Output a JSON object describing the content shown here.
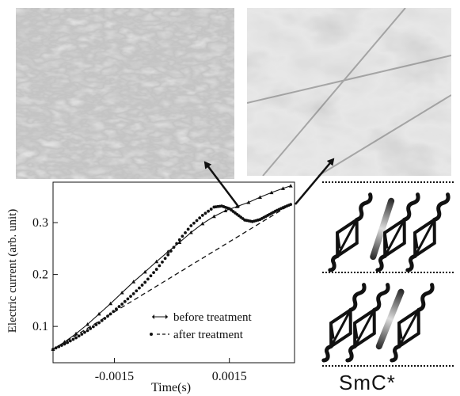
{
  "figure": {
    "phase_label": "SmC*",
    "colors": {
      "ink": "#111111",
      "micrograph_base": "#a9a9a9",
      "molecule_gradient": "#9a9a9a"
    },
    "icons": [
      "arrow-icon",
      "molecule-icon"
    ]
  },
  "chart_data": {
    "type": "line",
    "xlabel": "Time(s)",
    "ylabel": "Electric current (arb. unit)",
    "x_ticks": [
      -0.0015,
      0.0015
    ],
    "x_tick_labels": [
      "-0.0015",
      "0.0015"
    ],
    "y_ticks": [
      0.1,
      0.2,
      0.3
    ],
    "y_tick_labels": [
      "0.1",
      "0.2",
      "0.3"
    ],
    "xlim": [
      -0.0031,
      0.0032
    ],
    "ylim": [
      0.03,
      0.378
    ],
    "grid": false,
    "legend_position": "bottom-right",
    "series": [
      {
        "name": "before treatment",
        "style": "line with small triangle markers",
        "x": [
          -0.0031,
          -0.0028,
          -0.0025,
          -0.0022,
          -0.0019,
          -0.0016,
          -0.0013,
          -0.001,
          -0.0007,
          -0.0004,
          -0.0001,
          0.0002,
          0.0005,
          0.0008,
          0.0011,
          0.0014,
          0.0017,
          0.002,
          0.0023,
          0.0026,
          0.0029,
          0.0031
        ],
        "y": [
          0.056,
          0.07,
          0.086,
          0.104,
          0.124,
          0.144,
          0.165,
          0.186,
          0.205,
          0.225,
          0.244,
          0.262,
          0.281,
          0.298,
          0.312,
          0.323,
          0.331,
          0.339,
          0.349,
          0.358,
          0.366,
          0.371
        ]
      },
      {
        "name": "after treatment",
        "style": "dotted markers",
        "x": [
          -0.0031,
          -0.0028,
          -0.0025,
          -0.0022,
          -0.0019,
          -0.0016,
          -0.0013,
          -0.001,
          -0.0007,
          -0.0004,
          -0.0001,
          0.0002,
          0.0005,
          0.0008,
          0.0011,
          0.0013,
          0.0015,
          0.0017,
          0.0019,
          0.0021,
          0.0023,
          0.0025,
          0.0027,
          0.0029,
          0.0031
        ],
        "y": [
          0.056,
          0.066,
          0.078,
          0.092,
          0.107,
          0.124,
          0.143,
          0.163,
          0.185,
          0.21,
          0.238,
          0.267,
          0.294,
          0.314,
          0.33,
          0.332,
          0.327,
          0.316,
          0.305,
          0.302,
          0.306,
          0.314,
          0.322,
          0.329,
          0.335
        ]
      },
      {
        "name": "",
        "style": "dashed baseline",
        "x": [
          -0.0031,
          0.0031
        ],
        "y": [
          0.056,
          0.335
        ]
      }
    ]
  }
}
